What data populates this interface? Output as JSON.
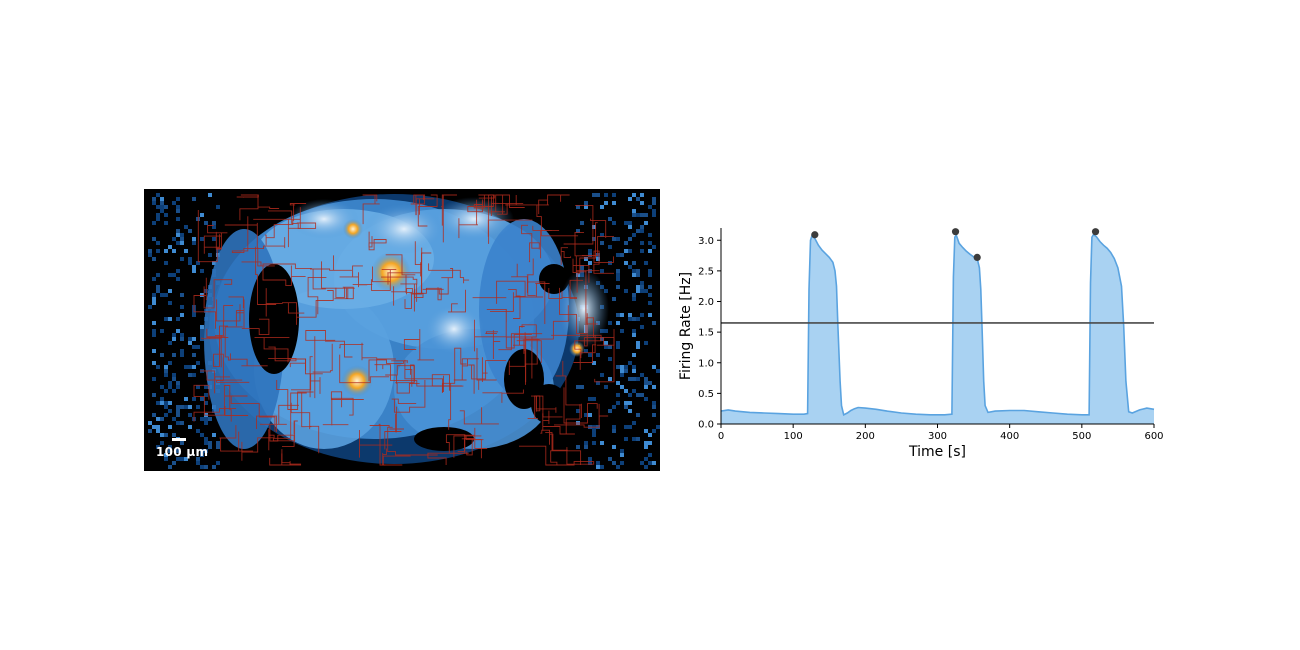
{
  "image_panel": {
    "scalebar_label": "100 µm",
    "colors": {
      "background": "#000000",
      "map_dark": "#0d3f78",
      "map_mid": "#3f8bd2",
      "map_light": "#bcd8ef",
      "hotspot": "#f5a623",
      "tracks": "#b02a1c"
    }
  },
  "chart_data": {
    "type": "area",
    "xlabel": "Time [s]",
    "ylabel": "Firing Rate [Hz]",
    "xlim": [
      0,
      600
    ],
    "ylim": [
      0,
      3.2
    ],
    "xticks": [
      "0",
      "100",
      "200",
      "300",
      "400",
      "500",
      "600"
    ],
    "yticks": [
      "0.0",
      "0.5",
      "1.0",
      "1.5",
      "2.0",
      "2.5",
      "3.0"
    ],
    "threshold": 1.65,
    "series": [
      {
        "x": [
          0,
          10,
          20,
          40,
          60,
          80,
          100,
          115,
          120,
          122,
          124,
          126,
          130,
          135,
          140,
          145,
          150,
          155,
          158,
          160,
          162,
          165,
          167,
          170,
          175,
          180,
          185,
          190,
          200,
          215,
          230,
          250,
          270,
          290,
          310,
          320,
          322,
          324,
          326,
          330,
          335,
          340,
          345,
          350,
          355,
          358,
          360,
          362,
          364,
          366,
          370,
          380,
          400,
          420,
          440,
          460,
          480,
          500,
          510,
          512,
          514,
          516,
          520,
          525,
          530,
          535,
          540,
          545,
          550,
          555,
          558,
          561,
          565,
          570,
          580,
          590,
          600
        ],
        "y": [
          0.21,
          0.23,
          0.21,
          0.19,
          0.18,
          0.17,
          0.16,
          0.16,
          0.17,
          2.2,
          3.0,
          3.07,
          3.03,
          2.92,
          2.84,
          2.78,
          2.72,
          2.64,
          2.5,
          2.25,
          1.6,
          0.7,
          0.3,
          0.15,
          0.18,
          0.22,
          0.25,
          0.27,
          0.26,
          0.24,
          0.21,
          0.18,
          0.16,
          0.15,
          0.15,
          0.16,
          2.4,
          3.05,
          3.08,
          2.95,
          2.88,
          2.82,
          2.77,
          2.73,
          2.7,
          2.55,
          2.2,
          1.5,
          0.7,
          0.3,
          0.19,
          0.21,
          0.22,
          0.22,
          0.2,
          0.18,
          0.16,
          0.15,
          0.15,
          2.3,
          3.05,
          3.09,
          3.06,
          2.98,
          2.92,
          2.87,
          2.8,
          2.7,
          2.55,
          2.25,
          1.6,
          0.7,
          0.2,
          0.18,
          0.23,
          0.26,
          0.24
        ]
      }
    ],
    "markers": [
      {
        "x": 130,
        "y": 3.09
      },
      {
        "x": 325,
        "y": 3.14
      },
      {
        "x": 355,
        "y": 2.72
      },
      {
        "x": 519,
        "y": 3.14
      }
    ],
    "colors": {
      "fill": "#a9d2f2",
      "line": "#5aa3e0",
      "threshold": "#4a4a4a",
      "marker": "#3c3c3c"
    }
  }
}
